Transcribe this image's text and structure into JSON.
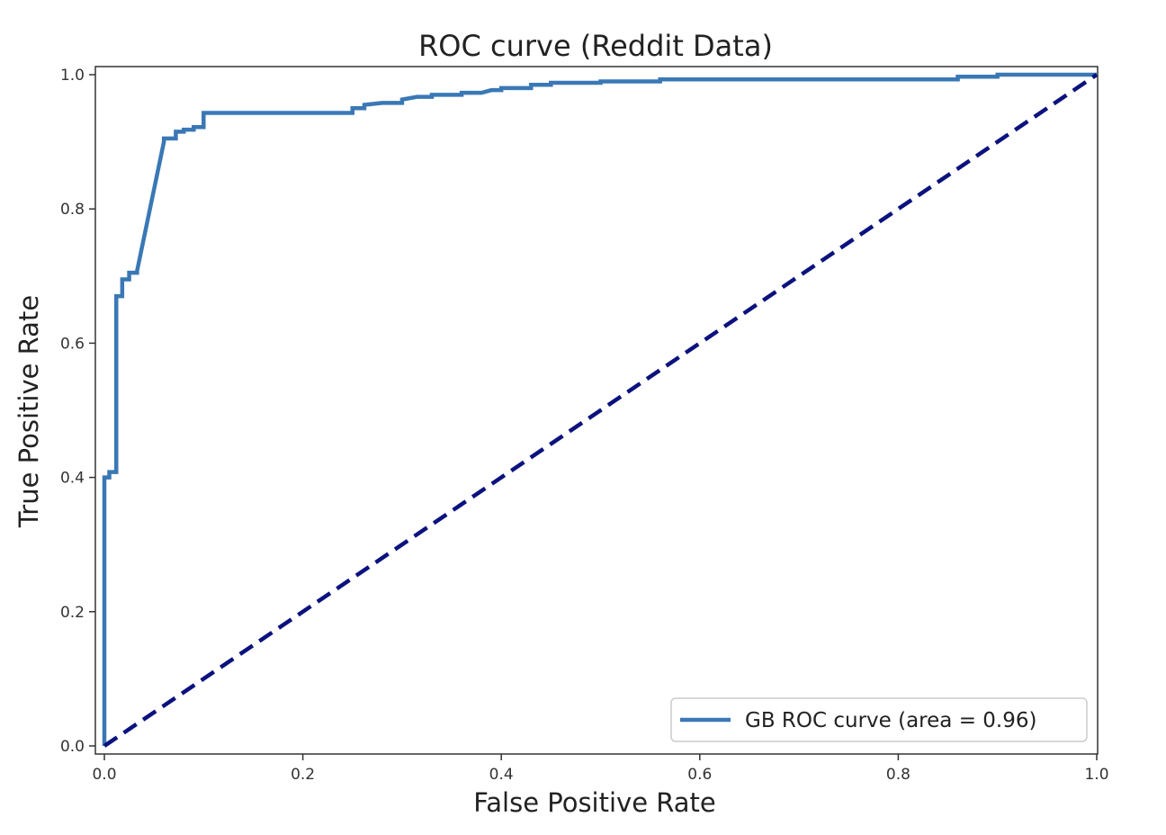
{
  "chart_data": {
    "type": "line",
    "title": "ROC curve (Reddit Data)",
    "xlabel": "False Positive Rate",
    "ylabel": "True Positive Rate",
    "xlim": [
      0.0,
      1.0
    ],
    "ylim": [
      0.0,
      1.0
    ],
    "grid": false,
    "legend_position": "bottom-right",
    "x_ticks": [
      {
        "value": 0.0,
        "label": "0.0"
      },
      {
        "value": 0.2,
        "label": "0.2"
      },
      {
        "value": 0.4,
        "label": "0.4"
      },
      {
        "value": 0.6,
        "label": "0.6"
      },
      {
        "value": 0.8,
        "label": "0.8"
      },
      {
        "value": 1.0,
        "label": "1.0"
      }
    ],
    "y_ticks": [
      {
        "value": 0.0,
        "label": "0.0"
      },
      {
        "value": 0.2,
        "label": "0.2"
      },
      {
        "value": 0.4,
        "label": "0.4"
      },
      {
        "value": 0.6,
        "label": "0.6"
      },
      {
        "value": 0.8,
        "label": "0.8"
      },
      {
        "value": 1.0,
        "label": "1.0"
      }
    ],
    "series": [
      {
        "name": "GB ROC curve (area = 0.96)",
        "color": "#3a78b5",
        "line_style": "solid",
        "x": [
          0.0,
          0.0,
          0.005,
          0.005,
          0.012,
          0.012,
          0.018,
          0.018,
          0.025,
          0.025,
          0.033,
          0.033,
          0.06,
          0.06,
          0.072,
          0.072,
          0.08,
          0.08,
          0.09,
          0.09,
          0.1,
          0.1,
          0.15,
          0.2,
          0.25,
          0.25,
          0.262,
          0.262,
          0.28,
          0.3,
          0.3,
          0.315,
          0.33,
          0.33,
          0.36,
          0.36,
          0.38,
          0.39,
          0.4,
          0.4,
          0.43,
          0.43,
          0.45,
          0.45,
          0.5,
          0.5,
          0.55,
          0.56,
          0.56,
          0.6,
          0.7,
          0.8,
          0.86,
          0.86,
          0.9,
          0.9,
          1.0
        ],
        "y": [
          0.0,
          0.4,
          0.4,
          0.408,
          0.408,
          0.67,
          0.67,
          0.695,
          0.695,
          0.705,
          0.705,
          0.708,
          0.9,
          0.905,
          0.905,
          0.915,
          0.915,
          0.918,
          0.918,
          0.922,
          0.922,
          0.943,
          0.943,
          0.943,
          0.943,
          0.95,
          0.95,
          0.955,
          0.958,
          0.958,
          0.963,
          0.967,
          0.967,
          0.97,
          0.97,
          0.973,
          0.973,
          0.977,
          0.977,
          0.98,
          0.98,
          0.985,
          0.985,
          0.988,
          0.988,
          0.99,
          0.99,
          0.99,
          0.993,
          0.993,
          0.993,
          0.993,
          0.993,
          0.997,
          0.997,
          1.0,
          1.0
        ]
      },
      {
        "name": "",
        "color": "#0b127e",
        "line_style": "dashed",
        "x": [
          0.0,
          1.0
        ],
        "y": [
          0.0,
          1.0
        ]
      }
    ]
  }
}
